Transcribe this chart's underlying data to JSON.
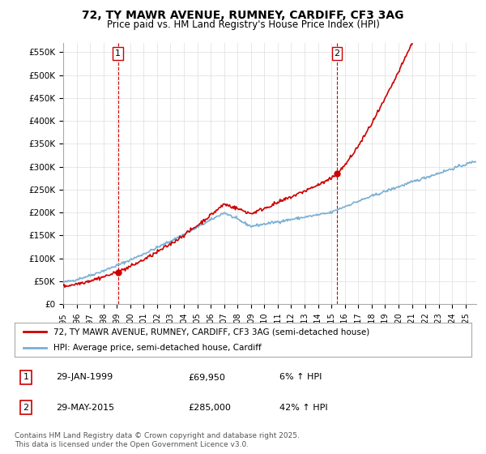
{
  "title": "72, TY MAWR AVENUE, RUMNEY, CARDIFF, CF3 3AG",
  "subtitle": "Price paid vs. HM Land Registry's House Price Index (HPI)",
  "ylabel_ticks": [
    0,
    50000,
    100000,
    150000,
    200000,
    250000,
    300000,
    350000,
    400000,
    450000,
    500000,
    550000
  ],
  "ylabel_labels": [
    "£0",
    "£50K",
    "£100K",
    "£150K",
    "£200K",
    "£250K",
    "£300K",
    "£350K",
    "£400K",
    "£450K",
    "£500K",
    "£550K"
  ],
  "ylim": [
    0,
    570000
  ],
  "xlim_start": 1995.0,
  "xlim_end": 2025.8,
  "red_line_color": "#cc0000",
  "blue_line_color": "#7aafd4",
  "sale1_date": 1999.08,
  "sale1_price": 69950,
  "sale1_label": "1",
  "sale1_text": "29-JAN-1999",
  "sale1_price_text": "£69,950",
  "sale1_hpi_text": "6% ↑ HPI",
  "sale2_date": 2015.41,
  "sale2_price": 285000,
  "sale2_label": "2",
  "sale2_text": "29-MAY-2015",
  "sale2_price_text": "£285,000",
  "sale2_hpi_text": "42% ↑ HPI",
  "legend_line1": "72, TY MAWR AVENUE, RUMNEY, CARDIFF, CF3 3AG (semi-detached house)",
  "legend_line2": "HPI: Average price, semi-detached house, Cardiff",
  "footer": "Contains HM Land Registry data © Crown copyright and database right 2025.\nThis data is licensed under the Open Government Licence v3.0.",
  "background_color": "#ffffff",
  "grid_color": "#dddddd"
}
